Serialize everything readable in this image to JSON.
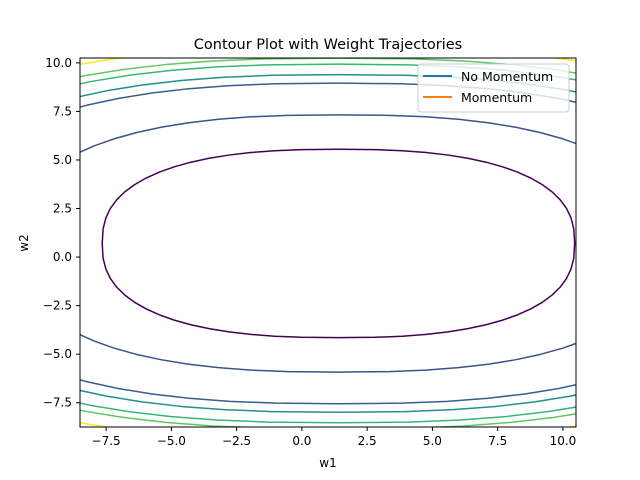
{
  "chart_data": {
    "type": "contour",
    "title": "Contour Plot with Weight Trajectories",
    "xlabel": "w1",
    "ylabel": "w2",
    "xlim": [
      -8.5,
      10.5
    ],
    "ylim": [
      -8.75,
      10.25
    ],
    "x_ticks": [
      -7.5,
      -5.0,
      -2.5,
      0.0,
      2.5,
      5.0,
      7.5,
      10.0
    ],
    "y_ticks": [
      -7.5,
      -5.0,
      -2.5,
      0.0,
      2.5,
      5.0,
      7.5,
      10.0
    ],
    "x_tick_labels": [
      "−7.5",
      "−5.0",
      "−2.5",
      "0.0",
      "2.5",
      "5.0",
      "7.5",
      "10.0"
    ],
    "y_tick_labels": [
      "−7.5",
      "−5.0",
      "−2.5",
      "0.0",
      "2.5",
      "5.0",
      "7.5",
      "10.0"
    ],
    "grid": false,
    "legend_position": "top-right",
    "series": [
      {
        "name": "No Momentum",
        "color": "#1f77b4",
        "values": []
      },
      {
        "name": "Momentum",
        "color": "#ff7f0e",
        "values": []
      }
    ],
    "contour_model": {
      "center": [
        1.4,
        0.7
      ],
      "x_scale": 9.05,
      "y_scale": 4.85
    },
    "contour_levels": [
      {
        "value": 1.0,
        "color": "#440154"
      },
      {
        "value": 2.18,
        "color": "#3b528b"
      },
      {
        "value": 3.78,
        "color": "#355f8d"
      },
      {
        "value": 4.3,
        "color": "#21918c"
      },
      {
        "value": 5.0,
        "color": "#35b779"
      },
      {
        "value": 5.43,
        "color": "#5ec962"
      },
      {
        "value": 6.26,
        "color": "#fde725"
      }
    ]
  }
}
